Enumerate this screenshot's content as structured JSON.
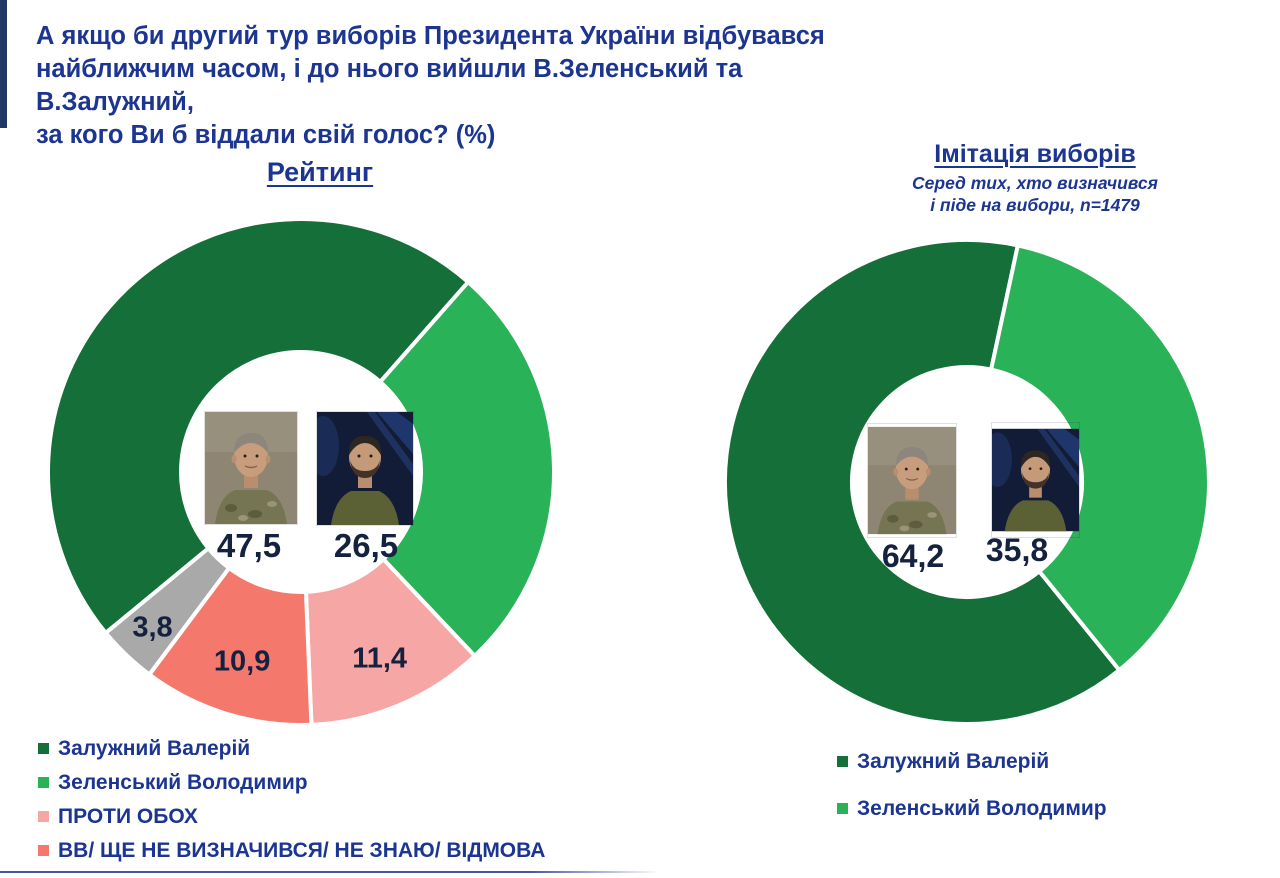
{
  "page": {
    "title_text": "А якщо би другий тур виборів Президента України відбувався\nнайближчим часом, і до нього вийшли В.Зеленський та В.Залужний,\nза кого Ви б віддали свій голос? (%)",
    "accent_color": "#1c3590",
    "bar_color": "#1f3864"
  },
  "chart_data": [
    {
      "type": "pie",
      "variant": "donut",
      "title": "Рейтинг",
      "subtitle": "",
      "start_deg": 230.5,
      "legend_position": "bottom-left",
      "center_photos": [
        "zaluzhny-portrait",
        "zelensky-portrait"
      ],
      "slices": [
        {
          "label": "Залужний Валерій",
          "value": 47.5,
          "display": "47,5",
          "color": "#146f38",
          "legend": true,
          "label_pos": "center"
        },
        {
          "label": "Зеленський Володимир",
          "value": 26.5,
          "display": "26,5",
          "color": "#29b257",
          "legend": true,
          "label_pos": "center"
        },
        {
          "label": "ПРОТИ ОБОХ",
          "value": 11.4,
          "display": "11,4",
          "color": "#f7a6a6",
          "legend": true,
          "label_pos": "slice",
          "label_r": 0.8
        },
        {
          "label": "ВВ/ ЩЕ НЕ ВИЗНАЧИВСЯ/ НЕ ЗНАЮ/ ВІДМОВА",
          "value": 10.9,
          "display": "10,9",
          "color": "#f4786c",
          "legend": true,
          "label_pos": "slice",
          "label_r": 0.785
        },
        {
          "label": "",
          "value": 3.8,
          "display": "3,8",
          "color": "#a9a9a9",
          "legend": false,
          "label_pos": "slice",
          "label_r": 0.85
        }
      ]
    },
    {
      "type": "pie",
      "variant": "donut",
      "title": "Імітація виборів",
      "subtitle": "Серед тих, хто визначився\nі піде на вибори, n=1479",
      "start_deg": 141,
      "legend_position": "bottom-left",
      "center_photos": [
        "zaluzhny-portrait",
        "zelensky-portrait"
      ],
      "slices": [
        {
          "label": "Залужний Валерій",
          "value": 64.2,
          "display": "64,2",
          "color": "#146f38",
          "legend": true,
          "label_pos": "center"
        },
        {
          "label": "Зеленський Володимир",
          "value": 35.8,
          "display": "35,8",
          "color": "#29b257",
          "legend": true,
          "label_pos": "center"
        }
      ]
    }
  ]
}
